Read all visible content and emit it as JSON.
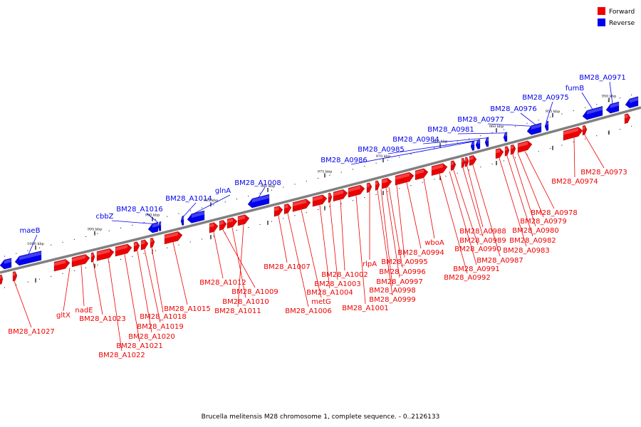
{
  "caption": "Brucella melitensis M28 chromosome 1, complete sequence. - 0..2126133",
  "colors": {
    "forward": "#ee0000",
    "reverse": "#0000ee",
    "backbone": "#808080"
  },
  "legend": [
    {
      "label": "Forward",
      "color": "#ee0000"
    },
    {
      "label": "Reverse",
      "color": "#0000ee"
    }
  ],
  "ticks": [
    "1000 kbp",
    "995 kbp",
    "990 kbp",
    "985 kbp",
    "980 kbp",
    "975 kbp",
    "970 kbp",
    "965 kbp",
    "960 kbp",
    "955 kbp",
    "950 kbp"
  ],
  "reverse_labels": [
    "maeB",
    "cbbZ",
    "BM28_A1016",
    "BM28_A1014",
    "glnA",
    "BM28_A1008",
    "BM28_A0986",
    "BM28_A0985",
    "BM28_A0984",
    "BM28_A0981",
    "BM28_A0977",
    "BM28_A0976",
    "BM28_A0975",
    "fumB",
    "BM28_A0971"
  ],
  "forward_labels": [
    "BM28_A1027",
    "gltX",
    "nadE",
    "BM28_A1023",
    "BM28_A1022",
    "BM28_A1021",
    "BM28_A1020",
    "BM28_A1019",
    "BM28_A1018",
    "BM28_A1015",
    "BM28_A1012",
    "BM28_A1009",
    "BM28_A1010",
    "BM28_A1011",
    "BM28_A1007",
    "BM28_A1006",
    "metG",
    "BM28_A1004",
    "BM28_A1003",
    "BM28_A1002",
    "BM28_A1001",
    "rlpA",
    "BM28_A0999",
    "BM28_A0998",
    "BM28_A0997",
    "BM28_A0996",
    "BM28_A0995",
    "wboA",
    "BM28_A0994",
    "BM28_A0992",
    "BM28_A0991",
    "BM28_A0990",
    "BM28_A0989",
    "BM28_A0988",
    "BM28_A0987",
    "BM28_A0983",
    "BM28_A0982",
    "BM28_A0980",
    "BM28_A0979",
    "BM28_A0978",
    "BM28_A0974",
    "BM28_A0973"
  ]
}
